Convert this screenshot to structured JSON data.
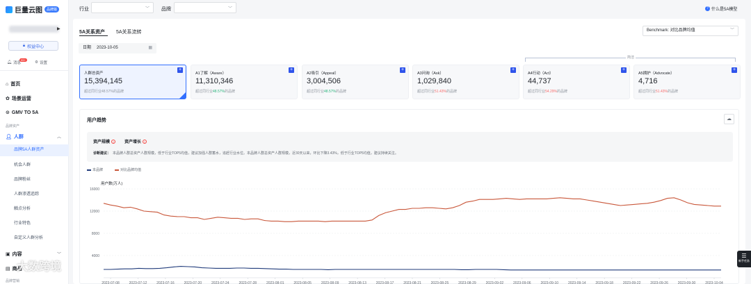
{
  "sidebar": {
    "logo_text": "巨量云图",
    "logo_badge": "品牌版",
    "rights_center": "权益中心",
    "quick": [
      {
        "icon": "bell-icon",
        "label": "消息",
        "badge": "99+"
      },
      {
        "icon": "gear-icon",
        "label": "设置"
      }
    ],
    "nav": {
      "home": "首页",
      "scene": "场景运营",
      "gmv": "GMV TO 5A",
      "section_caption": "品牌资产",
      "crowd": "人群",
      "content": "内容",
      "bottom_partial": "商品",
      "bottom_caption": "品牌营销"
    },
    "sub_items": [
      "品牌5A人群资产",
      "机会人群",
      "品牌粉丝",
      "人群渗透追踪",
      "触点分析",
      "行业特色",
      "自定义人群分析"
    ]
  },
  "filters": {
    "industry_label": "行业",
    "brand_label": "品牌",
    "help_text": "什么是5A模型"
  },
  "main": {
    "tabs": [
      "5A关系资产",
      "5A关系流转"
    ],
    "benchmark": "Benchmark:  对比品牌均值",
    "date_label": "日期",
    "date_value": "2023-10-05",
    "bracket_label": "简洁",
    "cards": [
      {
        "title": "人群总资产",
        "value": "15,394,145",
        "sub_pre": "超过同行业",
        "sub_pct": "48.57%",
        "sub_post": "的品牌",
        "pct_color": "#8f959e"
      },
      {
        "title": "A1了解（Aware）",
        "value": "11,310,346",
        "sub_pre": "超过同行业",
        "sub_pct": "48.57%",
        "sub_post": "的品牌",
        "pct_color": "#2ab27b"
      },
      {
        "title": "A2吸引（Appeal）",
        "value": "3,004,506",
        "sub_pre": "超过同行业",
        "sub_pct": "48.57%",
        "sub_post": "的品牌",
        "pct_color": "#2ab27b"
      },
      {
        "title": "A3问询（Ask）",
        "value": "1,029,840",
        "sub_pre": "超过同行业",
        "sub_pct": "51.43%",
        "sub_post": "的品牌",
        "pct_color": "#f56c6c"
      },
      {
        "title": "A4行动（Act）",
        "value": "44,737",
        "sub_pre": "超过同行业",
        "sub_pct": "54.29%",
        "sub_post": "的品牌",
        "pct_color": "#f56c6c"
      },
      {
        "title": "A5拥护（Advocate）",
        "value": "4,716",
        "sub_pre": "超过同行业",
        "sub_pct": "51.43%",
        "sub_post": "的品牌",
        "pct_color": "#f56c6c"
      }
    ]
  },
  "trend": {
    "title": "用户趋势",
    "tags": [
      "资产规模",
      "资产增长"
    ],
    "diag_label": "诊断建议：",
    "diag_text": "本品牌人群总资产人群规模，低于行业TOP5均值，建议加强人群蓄水，追赶行业水位。本品牌人群总资产人群规模，近30天以来，环比下降3.43%，低于行业TOP5均值，建议持续关注。"
  },
  "float_btn": {
    "label": "新手任务"
  },
  "watermark": "大数跨境",
  "colors": {
    "primary": "#3370ff",
    "own_series": "#1f3a7a",
    "benchmark_series": "#c9573a"
  },
  "chart_data": {
    "type": "line",
    "ylabel": "用户数(万人)",
    "yticks": [
      4000,
      8000,
      12000,
      16000
    ],
    "ylim": [
      0,
      16000
    ],
    "x_labels": [
      "2023-07-08",
      "2023-07-12",
      "2023-07-16",
      "2023-07-20",
      "2023-07-24",
      "2023-07-28",
      "2023-08-01",
      "2023-08-05",
      "2023-08-09",
      "2023-08-13",
      "2023-08-17",
      "2023-08-21",
      "2023-08-25",
      "2023-08-29",
      "2023-09-02",
      "2023-09-06",
      "2023-09-10",
      "2023-09-14",
      "2023-09-18",
      "2023-09-22",
      "2023-09-26",
      "2023-09-30",
      "2023-10-04"
    ],
    "legend_position": "top-left",
    "grid": true,
    "series": [
      {
        "name": "本品牌",
        "color": "#1f3a7a",
        "values": [
          1500,
          1500,
          1550,
          1600,
          1600,
          1700,
          1650,
          1650,
          1700,
          1800,
          1950,
          2050,
          2000,
          1950,
          1800,
          1750,
          1700,
          1700,
          1700,
          1750,
          1750,
          1700,
          1700,
          1650,
          1600,
          1550,
          1550,
          1500,
          1500,
          1500,
          1500,
          1500,
          1450,
          1500,
          1500,
          1500,
          1500,
          1500,
          1500,
          1500,
          1500,
          1500,
          1500,
          1500,
          1500,
          1500,
          1500,
          1500,
          1500,
          1500,
          1500,
          1450,
          1450,
          1500,
          1500,
          1500,
          1500,
          1450,
          1400,
          1400,
          1400,
          1400,
          1400,
          1400,
          1400,
          1400,
          1400,
          1400,
          1400,
          1400,
          1400,
          1400,
          1400,
          1400,
          1400,
          1400,
          1400,
          1400,
          1400,
          1400,
          1400,
          1400,
          1400,
          1400,
          1400,
          1400,
          1400,
          1400,
          1400
        ]
      },
      {
        "name": "对比品牌均值",
        "color": "#c9573a",
        "values": [
          13400,
          13100,
          12900,
          12600,
          12700,
          12400,
          12000,
          11900,
          11800,
          11300,
          11100,
          11000,
          11000,
          10800,
          10800,
          10500,
          10700,
          10900,
          10800,
          10700,
          10700,
          10500,
          10600,
          10600,
          10300,
          10200,
          10200,
          10100,
          10100,
          10200,
          10200,
          10200,
          10200,
          10100,
          10200,
          10200,
          10200,
          10200,
          10200,
          10200,
          10400,
          11200,
          11700,
          12000,
          12300,
          12300,
          12500,
          12500,
          12600,
          12600,
          12500,
          12400,
          12600,
          13000,
          13600,
          13800,
          14100,
          14100,
          14100,
          14200,
          14300,
          14200,
          14100,
          14200,
          14200,
          14200,
          14200,
          14300,
          14400,
          14300,
          14200,
          14200,
          14000,
          13800,
          13600,
          13400,
          13200,
          13000,
          13100,
          13200,
          13300,
          13400,
          13600,
          13900,
          14300,
          14400,
          14000,
          13500,
          13200,
          13100,
          13000,
          12900,
          12900
        ]
      }
    ]
  }
}
